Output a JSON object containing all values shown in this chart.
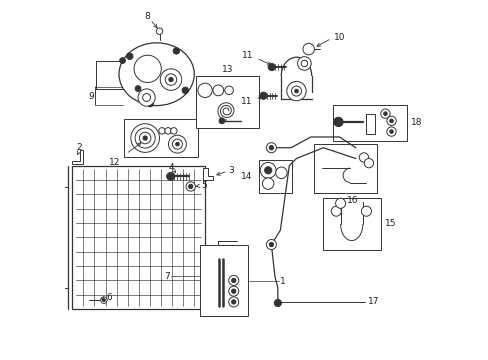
{
  "bg_color": "#ffffff",
  "line_color": "#333333",
  "label_color": "#222222",
  "fig_width": 4.89,
  "fig_height": 3.6,
  "dpi": 100
}
